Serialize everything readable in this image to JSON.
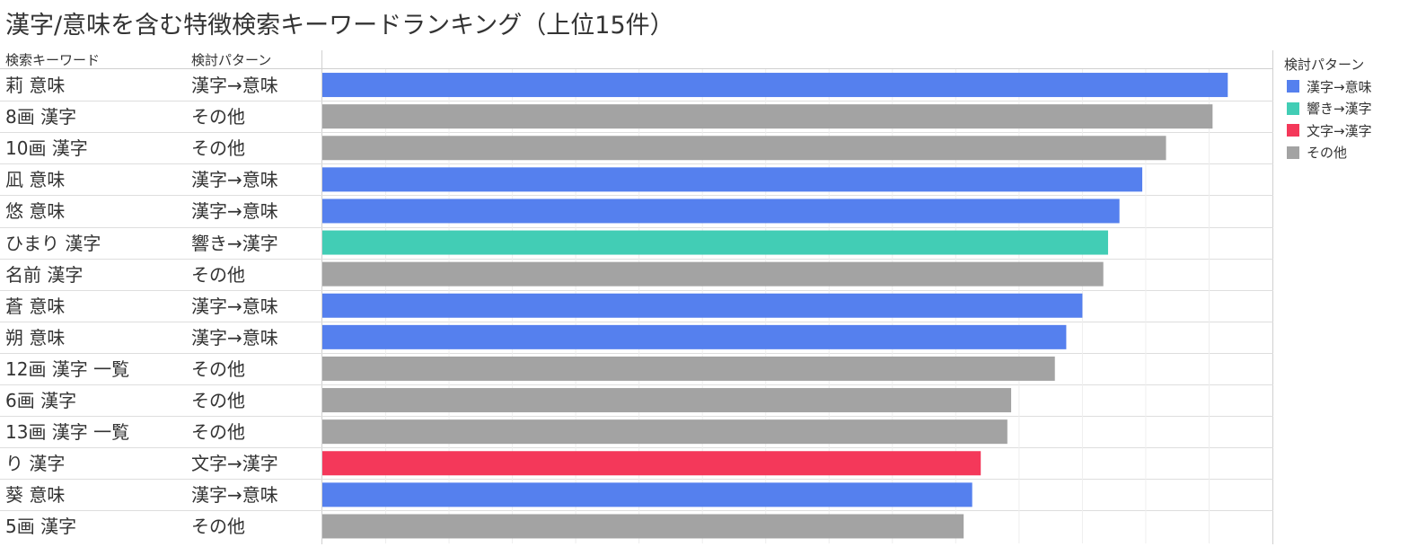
{
  "title": "漢字/意味を含む特徴検索キーワードランキング（上位15件）",
  "columns": {
    "keyword": "検索キーワード",
    "pattern": "検討パターン"
  },
  "legend": {
    "title": "検討パターン",
    "items": [
      {
        "label": "漢字→意味",
        "color": "#5580ee"
      },
      {
        "label": "響き→漢字",
        "color": "#42cdb5"
      },
      {
        "label": "文字→漢字",
        "color": "#f4385a"
      },
      {
        "label": "その他",
        "color": "#a3a3a3"
      }
    ]
  },
  "chart_data": {
    "type": "bar",
    "orientation": "horizontal",
    "categories": [
      "莉 意味",
      "8画 漢字",
      "10画 漢字",
      "凪 意味",
      "悠 意味",
      "ひまり 漢字",
      "名前 漢字",
      "蒼 意味",
      "朔 意味",
      "12画 漢字 一覧",
      "6画 漢字",
      "13画 漢字 一覧",
      "り 漢字",
      "葵 意味",
      "5画 漢字"
    ],
    "patterns": [
      "漢字→意味",
      "その他",
      "その他",
      "漢字→意味",
      "漢字→意味",
      "響き→漢字",
      "その他",
      "漢字→意味",
      "漢字→意味",
      "その他",
      "その他",
      "その他",
      "文字→漢字",
      "漢字→意味",
      "その他"
    ],
    "values": [
      95.3,
      93.7,
      88.8,
      86.3,
      83.9,
      82.7,
      82.2,
      80.0,
      78.3,
      77.1,
      72.5,
      72.1,
      69.3,
      68.4,
      67.5
    ],
    "xlim": [
      0,
      100
    ],
    "grid": true,
    "legend_position": "right"
  }
}
